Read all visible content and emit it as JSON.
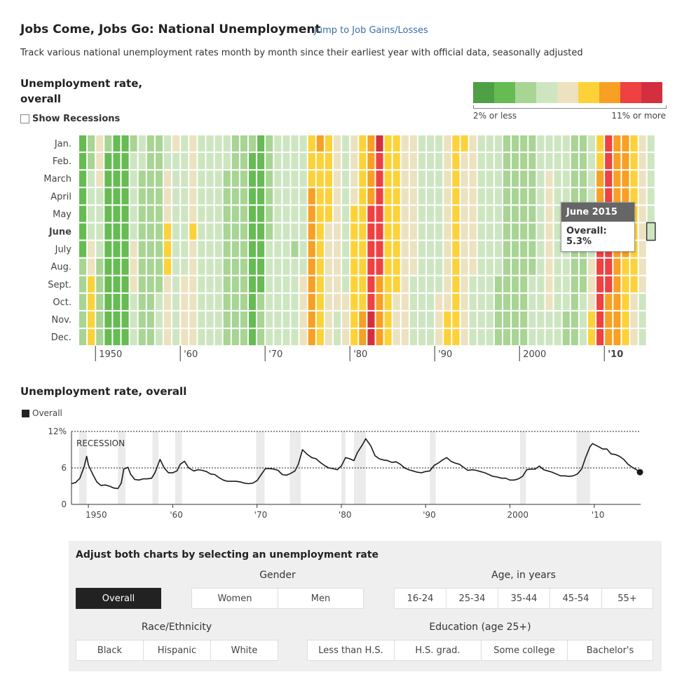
{
  "header": {
    "title": "Jobs Come, Jobs Go: National Unemployment",
    "jump_link": "Jump to Job Gains/Losses",
    "subtitle": "Track various national unemployment rates month by month since their earliest year with official data, seasonally adjusted"
  },
  "heatmap_panel": {
    "title": "Unemployment rate, overall",
    "show_recessions_label": "Show Recessions",
    "legend_low": "2% or less",
    "legend_high": "11% or more",
    "legend_colors": [
      "#4f9f47",
      "#66bb53",
      "#a8d494",
      "#cde6c1",
      "#ece2bf",
      "#fdd238",
      "#f7a023",
      "#ef4042",
      "#d32f3e"
    ],
    "tooltip": {
      "title": "June 2015",
      "value_text": "Overall: 5.3%"
    }
  },
  "line_panel": {
    "title": "Unemployment rate, overall",
    "legend_label": "Overall",
    "annotation": "RECESSION"
  },
  "chart_data": [
    {
      "type": "heatmap",
      "title": "Unemployment rate, overall",
      "rows": [
        "Jan.",
        "Feb.",
        "March",
        "April",
        "May",
        "June",
        "July",
        "Aug.",
        "Sept.",
        "Oct.",
        "Nov.",
        "Dec."
      ],
      "highlight_row": "June",
      "x_ticks": [
        "1950",
        "'60",
        "'70",
        "'80",
        "'90",
        "2000",
        "'10"
      ],
      "x_range": [
        1948,
        2015
      ],
      "last_value": {
        "month": "June 2015",
        "value": 5.3
      },
      "color_scale": {
        "min_label": "2% or less",
        "max_label": "11% or more",
        "min": 2,
        "max": 11
      },
      "annual_values": [
        {
          "year": 1948,
          "value": 3.8
        },
        {
          "year": 1949,
          "value": 5.9
        },
        {
          "year": 1950,
          "value": 5.3
        },
        {
          "year": 1951,
          "value": 3.3
        },
        {
          "year": 1952,
          "value": 3.0
        },
        {
          "year": 1953,
          "value": 2.9
        },
        {
          "year": 1954,
          "value": 5.5
        },
        {
          "year": 1955,
          "value": 4.4
        },
        {
          "year": 1956,
          "value": 4.1
        },
        {
          "year": 1957,
          "value": 4.3
        },
        {
          "year": 1958,
          "value": 6.8
        },
        {
          "year": 1959,
          "value": 5.5
        },
        {
          "year": 1960,
          "value": 5.5
        },
        {
          "year": 1961,
          "value": 6.7
        },
        {
          "year": 1962,
          "value": 5.5
        },
        {
          "year": 1963,
          "value": 5.7
        },
        {
          "year": 1964,
          "value": 5.2
        },
        {
          "year": 1965,
          "value": 4.5
        },
        {
          "year": 1966,
          "value": 3.8
        },
        {
          "year": 1967,
          "value": 3.8
        },
        {
          "year": 1968,
          "value": 3.6
        },
        {
          "year": 1969,
          "value": 3.5
        },
        {
          "year": 1970,
          "value": 4.9
        },
        {
          "year": 1971,
          "value": 5.9
        },
        {
          "year": 1972,
          "value": 5.6
        },
        {
          "year": 1973,
          "value": 4.9
        },
        {
          "year": 1974,
          "value": 5.6
        },
        {
          "year": 1975,
          "value": 8.5
        },
        {
          "year": 1976,
          "value": 7.7
        },
        {
          "year": 1977,
          "value": 7.1
        },
        {
          "year": 1978,
          "value": 6.1
        },
        {
          "year": 1979,
          "value": 5.8
        },
        {
          "year": 1980,
          "value": 7.1
        },
        {
          "year": 1981,
          "value": 7.6
        },
        {
          "year": 1982,
          "value": 9.7
        },
        {
          "year": 1983,
          "value": 9.6
        },
        {
          "year": 1984,
          "value": 7.5
        },
        {
          "year": 1985,
          "value": 7.2
        },
        {
          "year": 1986,
          "value": 7.0
        },
        {
          "year": 1987,
          "value": 6.2
        },
        {
          "year": 1988,
          "value": 5.5
        },
        {
          "year": 1989,
          "value": 5.3
        },
        {
          "year": 1990,
          "value": 5.6
        },
        {
          "year": 1991,
          "value": 6.8
        },
        {
          "year": 1992,
          "value": 7.5
        },
        {
          "year": 1993,
          "value": 6.9
        },
        {
          "year": 1994,
          "value": 6.1
        },
        {
          "year": 1995,
          "value": 5.6
        },
        {
          "year": 1996,
          "value": 5.4
        },
        {
          "year": 1997,
          "value": 4.9
        },
        {
          "year": 1998,
          "value": 4.5
        },
        {
          "year": 1999,
          "value": 4.2
        },
        {
          "year": 2000,
          "value": 4.0
        },
        {
          "year": 2001,
          "value": 4.7
        },
        {
          "year": 2002,
          "value": 5.8
        },
        {
          "year": 2003,
          "value": 6.0
        },
        {
          "year": 2004,
          "value": 5.5
        },
        {
          "year": 2005,
          "value": 5.1
        },
        {
          "year": 2006,
          "value": 4.6
        },
        {
          "year": 2007,
          "value": 4.6
        },
        {
          "year": 2008,
          "value": 5.8
        },
        {
          "year": 2009,
          "value": 9.3
        },
        {
          "year": 2010,
          "value": 9.6
        },
        {
          "year": 2011,
          "value": 8.9
        },
        {
          "year": 2012,
          "value": 8.1
        },
        {
          "year": 2013,
          "value": 7.4
        },
        {
          "year": 2014,
          "value": 6.2
        },
        {
          "year": 2015,
          "value": 5.3
        }
      ]
    },
    {
      "type": "line",
      "title": "Unemployment rate, overall",
      "series": [
        {
          "name": "Overall"
        }
      ],
      "y_ticks": [
        "0",
        "6",
        "12%"
      ],
      "ylim": [
        0,
        12
      ],
      "x_ticks": [
        "1950",
        "'60",
        "'70",
        "'80",
        "'90",
        "2000",
        "'10"
      ],
      "xlim": [
        1948,
        2015.5
      ],
      "points": [
        [
          1948.0,
          3.4
        ],
        [
          1948.5,
          3.6
        ],
        [
          1949.0,
          4.3
        ],
        [
          1949.5,
          6.2
        ],
        [
          1949.8,
          7.9
        ],
        [
          1950.0,
          6.5
        ],
        [
          1950.5,
          5.0
        ],
        [
          1951.0,
          3.7
        ],
        [
          1951.5,
          3.1
        ],
        [
          1952.0,
          3.2
        ],
        [
          1952.5,
          3.0
        ],
        [
          1953.0,
          2.7
        ],
        [
          1953.5,
          2.6
        ],
        [
          1953.9,
          3.5
        ],
        [
          1954.2,
          5.8
        ],
        [
          1954.7,
          6.1
        ],
        [
          1955.0,
          5.0
        ],
        [
          1955.5,
          4.1
        ],
        [
          1956.0,
          4.0
        ],
        [
          1956.5,
          4.2
        ],
        [
          1957.0,
          4.2
        ],
        [
          1957.5,
          4.3
        ],
        [
          1957.9,
          5.2
        ],
        [
          1958.5,
          7.4
        ],
        [
          1959.0,
          6.0
        ],
        [
          1959.5,
          5.2
        ],
        [
          1960.0,
          5.2
        ],
        [
          1960.5,
          5.5
        ],
        [
          1960.9,
          6.6
        ],
        [
          1961.4,
          7.1
        ],
        [
          1961.9,
          6.0
        ],
        [
          1962.5,
          5.5
        ],
        [
          1963.0,
          5.7
        ],
        [
          1963.5,
          5.6
        ],
        [
          1964.0,
          5.4
        ],
        [
          1964.5,
          5.0
        ],
        [
          1965.0,
          4.9
        ],
        [
          1965.5,
          4.4
        ],
        [
          1966.0,
          4.0
        ],
        [
          1966.5,
          3.8
        ],
        [
          1967.0,
          3.8
        ],
        [
          1967.5,
          3.8
        ],
        [
          1968.0,
          3.7
        ],
        [
          1968.5,
          3.5
        ],
        [
          1969.0,
          3.4
        ],
        [
          1969.5,
          3.5
        ],
        [
          1970.0,
          3.9
        ],
        [
          1970.5,
          4.9
        ],
        [
          1971.0,
          5.9
        ],
        [
          1971.5,
          5.9
        ],
        [
          1972.0,
          5.8
        ],
        [
          1972.5,
          5.6
        ],
        [
          1973.0,
          4.9
        ],
        [
          1973.5,
          4.8
        ],
        [
          1974.0,
          5.1
        ],
        [
          1974.5,
          5.5
        ],
        [
          1974.9,
          6.6
        ],
        [
          1975.4,
          9.0
        ],
        [
          1975.9,
          8.3
        ],
        [
          1976.5,
          7.7
        ],
        [
          1977.0,
          7.5
        ],
        [
          1977.5,
          6.9
        ],
        [
          1978.0,
          6.4
        ],
        [
          1978.5,
          6.0
        ],
        [
          1979.0,
          5.9
        ],
        [
          1979.5,
          5.7
        ],
        [
          1980.0,
          6.3
        ],
        [
          1980.5,
          7.7
        ],
        [
          1981.0,
          7.5
        ],
        [
          1981.5,
          7.2
        ],
        [
          1981.9,
          8.5
        ],
        [
          1982.5,
          9.8
        ],
        [
          1982.9,
          10.8
        ],
        [
          1983.5,
          9.6
        ],
        [
          1984.0,
          8.0
        ],
        [
          1984.5,
          7.5
        ],
        [
          1985.0,
          7.3
        ],
        [
          1985.5,
          7.2
        ],
        [
          1986.0,
          6.9
        ],
        [
          1986.5,
          7.0
        ],
        [
          1987.0,
          6.6
        ],
        [
          1987.5,
          6.0
        ],
        [
          1988.0,
          5.7
        ],
        [
          1988.5,
          5.5
        ],
        [
          1989.0,
          5.3
        ],
        [
          1989.5,
          5.2
        ],
        [
          1990.0,
          5.4
        ],
        [
          1990.5,
          5.5
        ],
        [
          1991.0,
          6.4
        ],
        [
          1991.5,
          6.8
        ],
        [
          1992.0,
          7.3
        ],
        [
          1992.5,
          7.7
        ],
        [
          1993.0,
          7.1
        ],
        [
          1993.5,
          6.8
        ],
        [
          1994.0,
          6.6
        ],
        [
          1994.5,
          6.1
        ],
        [
          1995.0,
          5.6
        ],
        [
          1995.5,
          5.7
        ],
        [
          1996.0,
          5.6
        ],
        [
          1996.5,
          5.4
        ],
        [
          1997.0,
          5.2
        ],
        [
          1997.5,
          4.9
        ],
        [
          1998.0,
          4.6
        ],
        [
          1998.5,
          4.5
        ],
        [
          1999.0,
          4.3
        ],
        [
          1999.5,
          4.3
        ],
        [
          2000.0,
          4.0
        ],
        [
          2000.5,
          4.0
        ],
        [
          2001.0,
          4.2
        ],
        [
          2001.5,
          4.6
        ],
        [
          2002.0,
          5.7
        ],
        [
          2002.5,
          5.8
        ],
        [
          2003.0,
          5.8
        ],
        [
          2003.5,
          6.3
        ],
        [
          2004.0,
          5.7
        ],
        [
          2004.5,
          5.5
        ],
        [
          2005.0,
          5.3
        ],
        [
          2005.5,
          5.0
        ],
        [
          2006.0,
          4.7
        ],
        [
          2006.5,
          4.7
        ],
        [
          2007.0,
          4.6
        ],
        [
          2007.5,
          4.7
        ],
        [
          2008.0,
          5.0
        ],
        [
          2008.5,
          5.8
        ],
        [
          2009.0,
          7.8
        ],
        [
          2009.5,
          9.5
        ],
        [
          2009.8,
          10.0
        ],
        [
          2010.5,
          9.5
        ],
        [
          2011.0,
          9.1
        ],
        [
          2011.5,
          9.1
        ],
        [
          2012.0,
          8.3
        ],
        [
          2012.5,
          8.2
        ],
        [
          2013.0,
          7.9
        ],
        [
          2013.5,
          7.4
        ],
        [
          2014.0,
          6.6
        ],
        [
          2014.5,
          6.1
        ],
        [
          2015.0,
          5.7
        ],
        [
          2015.42,
          5.3
        ]
      ],
      "recessions": [
        [
          1948.9,
          1949.8
        ],
        [
          1953.5,
          1954.4
        ],
        [
          1957.6,
          1958.3
        ],
        [
          1960.3,
          1961.1
        ],
        [
          1969.9,
          1970.9
        ],
        [
          1973.9,
          1975.2
        ],
        [
          1980.0,
          1980.5
        ],
        [
          1981.5,
          1982.9
        ],
        [
          1990.5,
          1991.2
        ],
        [
          2001.2,
          2001.9
        ],
        [
          2007.9,
          2009.5
        ]
      ]
    }
  ],
  "controls": {
    "title": "Adjust both charts by selecting an unemployment rate",
    "overall": "Overall",
    "gender_label": "Gender",
    "gender": [
      "Women",
      "Men"
    ],
    "age_label": "Age, in years",
    "age": [
      "16-24",
      "25-34",
      "35-44",
      "45-54",
      "55+"
    ],
    "race_label": "Race/Ethnicity",
    "race": [
      "Black",
      "Hispanic",
      "White"
    ],
    "education_label": "Education (age 25+)",
    "education": [
      "Less than H.S.",
      "H.S. grad.",
      "Some college",
      "Bachelor's"
    ]
  }
}
